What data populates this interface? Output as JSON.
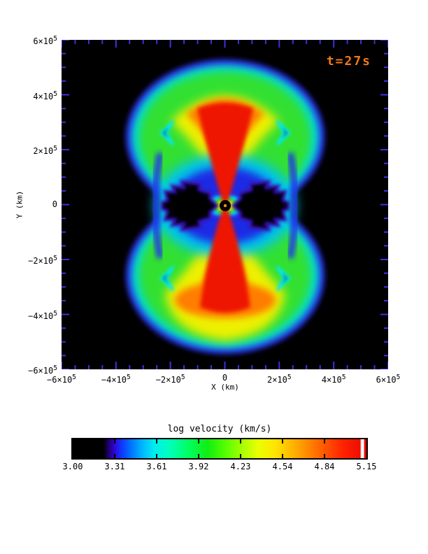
{
  "page": {
    "background": "#ffffff"
  },
  "chart_data": {
    "type": "heatmap",
    "title": "",
    "xlabel": "X (km)",
    "ylabel": "Y (km)",
    "xlim": [
      -600000,
      600000
    ],
    "ylim": [
      -600000,
      600000
    ],
    "x_ticks": [
      {
        "value": -600000,
        "label": "−6×10^5"
      },
      {
        "value": -400000,
        "label": "−4×10^5"
      },
      {
        "value": -200000,
        "label": "−2×10^5"
      },
      {
        "value": 0,
        "label": "0"
      },
      {
        "value": 200000,
        "label": "2×10^5"
      },
      {
        "value": 400000,
        "label": "4×10^5"
      },
      {
        "value": 600000,
        "label": "6×10^5"
      }
    ],
    "y_ticks": [
      {
        "value": 600000,
        "label": "6×10^5"
      },
      {
        "value": 400000,
        "label": "4×10^5"
      },
      {
        "value": 200000,
        "label": "2×10^5"
      },
      {
        "value": 0,
        "label": "0"
      },
      {
        "value": -200000,
        "label": "−2×10^5"
      },
      {
        "value": -400000,
        "label": "−4×10^5"
      },
      {
        "value": -600000,
        "label": "−6×10^5"
      }
    ],
    "minor_tick_step": 50000,
    "major_tick_step": 200000,
    "axis_tick_color": "#3c30e0",
    "grid": false,
    "annotation": {
      "text": "t=27s",
      "color": "#f07818"
    },
    "colorbar": {
      "title": "log velocity (km/s)",
      "min": 3.0,
      "max": 5.15,
      "tick_labels": [
        "3.00",
        "3.31",
        "3.61",
        "3.92",
        "4.23",
        "4.54",
        "4.84",
        "5.15"
      ],
      "orientation": "horizontal",
      "gradient_stops": [
        [
          "#000000",
          0
        ],
        [
          "#000000",
          10.5
        ],
        [
          "#1a0060",
          12
        ],
        [
          "#3300cc",
          14
        ],
        [
          "#1133ff",
          16.5
        ],
        [
          "#0077ff",
          20
        ],
        [
          "#00bbff",
          24
        ],
        [
          "#00eeee",
          28
        ],
        [
          "#00ffbb",
          33
        ],
        [
          "#00ff66",
          39
        ],
        [
          "#11ee11",
          46
        ],
        [
          "#55ff00",
          52
        ],
        [
          "#aaff00",
          58
        ],
        [
          "#e8ff00",
          63
        ],
        [
          "#ffe400",
          69
        ],
        [
          "#ffb300",
          75
        ],
        [
          "#ff8000",
          81
        ],
        [
          "#ff4d00",
          87
        ],
        [
          "#ff2200",
          92
        ],
        [
          "#ee0e00",
          97.8
        ],
        [
          "#ffffff",
          98.3
        ],
        [
          "#ffffff",
          99.0
        ],
        [
          "#dd0000",
          99.4
        ],
        [
          "#dd0000",
          100
        ]
      ]
    },
    "structures": [
      {
        "name": "bipolar mushroom lobes (top and bottom)",
        "extent_km": "|X| ≤ 3.6×10^5, |Y| ≤ 5.4×10^5",
        "log_velocity": "≈3.9–4.3 green body with ≈3.4–3.8 cyan/blue rim"
      },
      {
        "name": "fast polar jet (red hourglass along Y axis)",
        "extent_km": "half-width ≈1.0×10^5 at |Y|≈3.5×10^5, pinched to ≈10^4 at origin",
        "log_velocity": "≈5.0–5.15"
      },
      {
        "name": "yellow/orange sheath around jet",
        "log_velocity": "≈4.3–4.9"
      },
      {
        "name": "equatorial slow butterfly regions flanking origin",
        "extent_km": "|X| ≤ 1.9×10^5 near Y=0",
        "log_velocity": "≤3.0 (black)"
      },
      {
        "name": "blue-cyan halo ring around center",
        "extent_km": "radius ≈2.0×10^5",
        "log_velocity": "≈3.3–3.7"
      },
      {
        "name": "central black disc with bright core point",
        "extent_km": "radius ≈1.5×10^4"
      }
    ]
  }
}
